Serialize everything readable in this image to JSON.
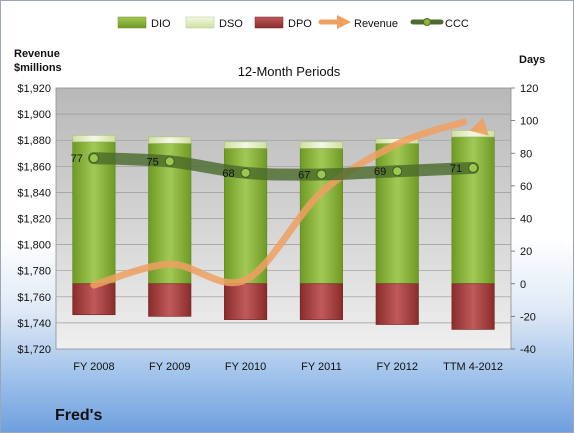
{
  "chart_data": {
    "type": "bar",
    "title": "12-Month Periods",
    "footer": "Fred's",
    "left_axis_label_line1": "Revenue",
    "left_axis_label_line2": "$millions",
    "right_axis_label": "Days",
    "categories": [
      "FY 2008",
      "FY 2009",
      "FY 2010",
      "FY 2011",
      "FY 2012",
      "TTM 4-2012"
    ],
    "left_ylim": [
      1720,
      1920
    ],
    "left_yticks": [
      1720,
      1740,
      1760,
      1780,
      1800,
      1820,
      1840,
      1860,
      1880,
      1900,
      1920
    ],
    "left_tick_labels": [
      "$1,720",
      "$1,740",
      "$1,760",
      "$1,780",
      "$1,800",
      "$1,820",
      "$1,840",
      "$1,860",
      "$1,880",
      "$1,900",
      "$1,920"
    ],
    "right_ylim": [
      -40,
      120
    ],
    "right_yticks": [
      -40,
      -20,
      0,
      20,
      40,
      60,
      80,
      100,
      120
    ],
    "legend_position": "top",
    "grid": true,
    "series": [
      {
        "name": "DIO",
        "axis": "right",
        "kind": "stacked-bar",
        "color": "#8cb43c",
        "values": [
          87,
          86,
          83,
          83,
          86,
          90
        ]
      },
      {
        "name": "DSO",
        "axis": "right",
        "kind": "stacked-bar",
        "color": "#e6f0c8",
        "values": [
          4,
          4,
          4,
          4,
          3,
          4
        ]
      },
      {
        "name": "DPO",
        "axis": "right",
        "kind": "negative-bar",
        "color": "#a23b3b",
        "values": [
          -19,
          -20,
          -22,
          -22,
          -25,
          -28
        ]
      },
      {
        "name": "Revenue",
        "axis": "left",
        "kind": "line",
        "color": "#f0a060",
        "values": [
          1769,
          1785,
          1773,
          1840,
          1877,
          1898
        ]
      },
      {
        "name": "CCC",
        "axis": "right",
        "kind": "line",
        "color": "#4e6b2e",
        "values": [
          77,
          75,
          68,
          67,
          69,
          71
        ],
        "labels": [
          "77",
          "75",
          "68",
          "67",
          "69",
          "71"
        ]
      }
    ]
  }
}
